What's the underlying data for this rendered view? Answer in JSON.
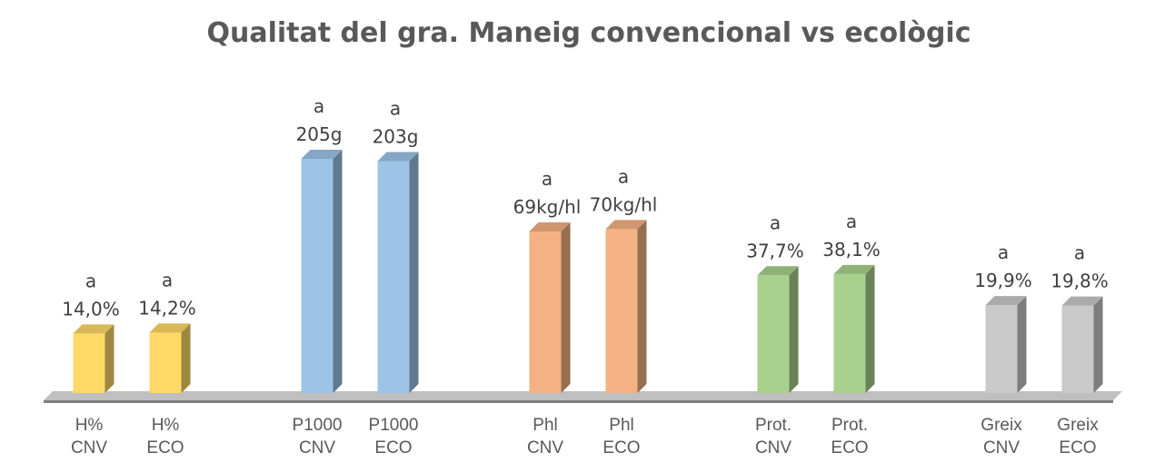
{
  "chart_data": {
    "type": "bar",
    "title": "Qualitat del gra. Maneig convencional vs ecològic",
    "groups": [
      {
        "color": "#ffd966",
        "bars": [
          {
            "label": [
              "H%",
              "CNV"
            ],
            "value": 14.0,
            "value_label": "14,0%",
            "significance": "a"
          },
          {
            "label": [
              "H%",
              "ECO"
            ],
            "value": 14.2,
            "value_label": "14,2%",
            "significance": "a"
          }
        ]
      },
      {
        "color": "#9dc3e6",
        "bars": [
          {
            "label": [
              "P1000",
              "CNV"
            ],
            "value": 205,
            "value_label": "205g",
            "significance": "a"
          },
          {
            "label": [
              "P1000",
              "ECO"
            ],
            "value": 203,
            "value_label": "203g",
            "significance": "a"
          }
        ]
      },
      {
        "color": "#f4b183",
        "bars": [
          {
            "label": [
              "Phl",
              "CNV"
            ],
            "value": 69,
            "value_label": "69kg/hl",
            "significance": "a"
          },
          {
            "label": [
              "Phl",
              "ECO"
            ],
            "value": 70,
            "value_label": "70kg/hl",
            "significance": "a"
          }
        ]
      },
      {
        "color": "#a9d18e",
        "bars": [
          {
            "label": [
              "Prot.",
              "CNV"
            ],
            "value": 37.7,
            "value_label": "37,7%",
            "significance": "a"
          },
          {
            "label": [
              "Prot.",
              "ECO"
            ],
            "value": 38.1,
            "value_label": "38,1%",
            "significance": "a"
          }
        ]
      },
      {
        "color": "#c9c9c9",
        "bars": [
          {
            "label": [
              "Greix",
              "CNV"
            ],
            "value": 19.9,
            "value_label": "19,9%",
            "significance": "a"
          },
          {
            "label": [
              "Greix",
              "ECO"
            ],
            "value": 19.8,
            "value_label": "19,8%",
            "significance": "a"
          }
        ]
      }
    ],
    "legend": "none",
    "grid": false
  }
}
